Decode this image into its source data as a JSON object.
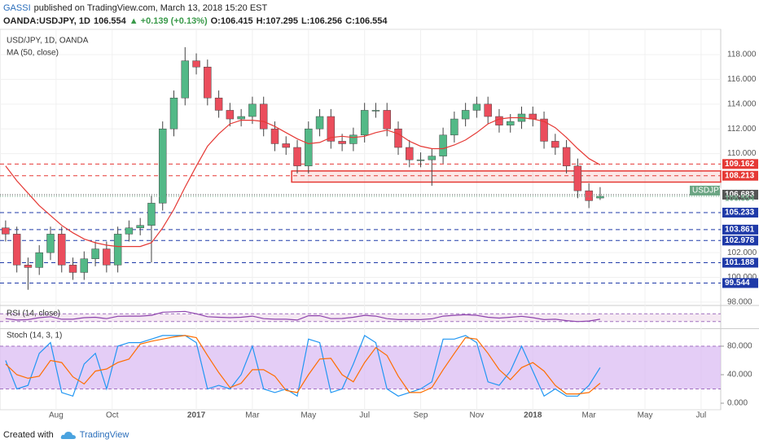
{
  "header": {
    "author": "GASSI",
    "published": "published on TradingView.com, March 13, 2018 15:20 EST",
    "symbol": "OANDA:USDJPY, 1D",
    "last": "106.554",
    "change": "▲ +0.139 (+0.13%)",
    "open": "O:106.415",
    "high": "H:107.295",
    "low": "L:106.256",
    "close": "C:106.554"
  },
  "footer": {
    "created": "Created with",
    "brand": "TradingView"
  },
  "chart_data": [
    {
      "type": "candlestick",
      "title": "USD/JPY, 1D, OANDA",
      "up_color": "#53b987",
      "down_color": "#eb4d5c",
      "x": [
        0.2,
        0.6,
        1.0,
        1.4,
        1.8,
        2.2,
        2.6,
        3.0,
        3.4,
        3.8,
        4.2,
        4.6,
        5.0,
        5.4,
        5.8,
        6.2,
        6.6,
        7.0,
        7.4,
        7.8,
        8.2,
        8.6,
        9.0,
        9.4,
        9.8,
        10.2,
        10.6,
        11.0,
        11.4,
        11.8,
        12.2,
        12.6,
        13.0,
        13.4,
        13.8,
        14.2,
        14.6,
        15.0,
        15.4,
        15.8,
        16.2,
        16.6,
        17.0,
        17.4,
        17.8,
        18.2,
        18.6,
        19.0,
        19.4,
        19.8,
        20.2,
        20.6,
        21.0,
        21.4
      ],
      "open": [
        104,
        103.5,
        101,
        100.8,
        102,
        103.5,
        101,
        100.4,
        101.5,
        102.3,
        101,
        103.5,
        104,
        104.2,
        106,
        112,
        114.5,
        117.5,
        117,
        114.5,
        113.5,
        112.8,
        113,
        114,
        112,
        110.8,
        110.5,
        109,
        112,
        113,
        111,
        110.8,
        111.5,
        113.5,
        113.5,
        112,
        110.5,
        109.5,
        109.5,
        109.8,
        111.5,
        112.8,
        113.5,
        114,
        113,
        112.3,
        112.6,
        113.2,
        112.8,
        111,
        110.5,
        109,
        107,
        106.415
      ],
      "high": [
        104.6,
        104.1,
        101.6,
        102.6,
        104.1,
        104.1,
        101.6,
        102.1,
        102.9,
        102.9,
        104.1,
        104.6,
        104.8,
        106.6,
        112.6,
        115.1,
        118.6,
        118.1,
        117.6,
        115.1,
        114.1,
        113.6,
        114.6,
        114.6,
        112.6,
        111.4,
        111.1,
        112.6,
        113.6,
        113.6,
        111.6,
        112.1,
        114.1,
        114.1,
        114.1,
        112.6,
        111.1,
        110.1,
        110.4,
        112.1,
        113.4,
        114.1,
        114.6,
        114.6,
        113.6,
        113.2,
        113.8,
        113.8,
        113.4,
        111.6,
        111.1,
        109.6,
        107.6,
        107.295
      ],
      "low": [
        102.9,
        100.4,
        99.0,
        100.2,
        101.4,
        100.4,
        99.8,
        99.8,
        100.9,
        100.4,
        100.4,
        102.9,
        103.4,
        101.2,
        105.4,
        111.4,
        113.9,
        116.4,
        113.9,
        112.9,
        112.2,
        112.2,
        112.4,
        111.4,
        110.2,
        109.9,
        108.4,
        108.4,
        111.4,
        110.4,
        110.2,
        110.2,
        110.9,
        112.9,
        111.4,
        109.9,
        108.9,
        108.9,
        107.4,
        109.2,
        110.9,
        112.2,
        112.9,
        112.4,
        111.7,
        111.7,
        112.0,
        112.2,
        110.4,
        109.9,
        108.4,
        106.4,
        105.6,
        106.256
      ],
      "close": [
        103.5,
        101,
        100.8,
        102,
        103.5,
        101,
        100.4,
        101.5,
        102.3,
        101,
        103.5,
        104,
        104.2,
        106,
        112,
        114.5,
        117.5,
        117,
        114.5,
        113.5,
        112.8,
        113,
        114,
        112,
        110.8,
        110.5,
        109,
        112,
        113,
        111,
        110.8,
        111.5,
        113.5,
        113.5,
        112,
        110.5,
        109.5,
        109.5,
        109.8,
        111.5,
        112.8,
        113.5,
        114,
        113,
        112.3,
        112.6,
        113.2,
        112.8,
        111,
        110.5,
        109,
        107,
        106.2,
        106.554
      ],
      "series": [
        {
          "name": "MA (50, close)",
          "color": "#e53935",
          "values": [
            109,
            107.8,
            106.8,
            105.8,
            105,
            104.2,
            103.6,
            103.1,
            102.8,
            102.6,
            102.5,
            102.5,
            102.5,
            102.8,
            104,
            105.5,
            107.3,
            109,
            110.6,
            111.6,
            112.4,
            112.7,
            112.7,
            112.6,
            112.2,
            111.7,
            111.2,
            110.8,
            110.9,
            111.3,
            111.4,
            111.3,
            111.4,
            111.7,
            111.9,
            111.6,
            111,
            110.6,
            110.4,
            110.4,
            110.7,
            111.1,
            111.7,
            112.4,
            112.8,
            112.9,
            112.9,
            112.8,
            112.6,
            112.1,
            111.3,
            110.4,
            109.6,
            109.1
          ]
        }
      ],
      "xlim": [
        0,
        25.7
      ],
      "xticks": [
        {
          "value": 2,
          "label": "Aug"
        },
        {
          "value": 4,
          "label": "Oct"
        },
        {
          "value": 7,
          "label": "2017"
        },
        {
          "value": 9,
          "label": "Mar"
        },
        {
          "value": 11,
          "label": "May"
        },
        {
          "value": 13,
          "label": "Jul"
        },
        {
          "value": 15,
          "label": "Sep"
        },
        {
          "value": 17,
          "label": "Nov"
        },
        {
          "value": 19,
          "label": "2018"
        },
        {
          "value": 21,
          "label": "Mar"
        },
        {
          "value": 23,
          "label": "May"
        },
        {
          "value": 25,
          "label": "Jul"
        }
      ],
      "ylim": [
        97.93,
        119.78
      ],
      "yticks": [
        {
          "value": 118,
          "label": "118.000"
        },
        {
          "value": 116,
          "label": "116.000"
        },
        {
          "value": 114,
          "label": "114.000"
        },
        {
          "value": 112,
          "label": "112.000"
        },
        {
          "value": 110,
          "label": "110.000"
        },
        {
          "value": 102,
          "label": "102.000"
        },
        {
          "value": 100,
          "label": "100.000"
        },
        {
          "value": 98,
          "label": "98.000"
        }
      ],
      "zone": {
        "x0": 10.4,
        "range": [
          107.7,
          108.6
        ],
        "color": "#e53935"
      },
      "levels": [
        {
          "value": 109.162,
          "label": "109.162",
          "color": "#e53935"
        },
        {
          "value": 108.213,
          "label": "108.213",
          "color": "#e53935"
        },
        {
          "value": 105.233,
          "label": "105.233",
          "color": "#1f3aa8"
        },
        {
          "value": 103.861,
          "label": "103.861",
          "color": "#1f3aa8"
        },
        {
          "value": 102.978,
          "label": "102.978",
          "color": "#1f3aa8"
        },
        {
          "value": 101.188,
          "label": "101.188",
          "color": "#1f3aa8"
        },
        {
          "value": 99.544,
          "label": "99.544",
          "color": "#1f3aa8"
        }
      ],
      "reference": {
        "value": 106.683,
        "label": "106.683",
        "color": "#555555"
      },
      "last": {
        "value": 106.554,
        "label": "106.554",
        "tag": "USDJPY",
        "color": "#6ba583"
      }
    },
    {
      "type": "line",
      "title": "RSI (14, close)",
      "band": [
        30,
        70
      ],
      "ylim": [
        0,
        100
      ],
      "series": [
        {
          "color": "#8e44ad",
          "values": [
            45,
            38,
            40,
            50,
            55,
            42,
            42,
            50,
            52,
            45,
            57,
            58,
            58,
            62,
            78,
            80,
            82,
            70,
            55,
            52,
            50,
            52,
            58,
            45,
            42,
            42,
            38,
            60,
            60,
            45,
            46,
            52,
            62,
            58,
            45,
            40,
            40,
            40,
            44,
            58,
            62,
            65,
            62,
            52,
            48,
            52,
            57,
            50,
            40,
            42,
            35,
            30,
            33,
            42
          ]
        }
      ]
    },
    {
      "type": "line",
      "title": "Stoch (14, 3, 1)",
      "band": [
        20,
        80
      ],
      "ylim": [
        -5.71,
        102.86
      ],
      "yticks": [
        {
          "value": 80,
          "label": "80.000"
        },
        {
          "value": 40,
          "label": "40.000"
        },
        {
          "value": 0,
          "label": "0.000"
        }
      ],
      "series": [
        {
          "color": "#2196f3",
          "values": [
            60,
            20,
            25,
            70,
            85,
            15,
            10,
            55,
            70,
            20,
            80,
            85,
            85,
            90,
            95,
            95,
            95,
            85,
            20,
            25,
            20,
            40,
            80,
            20,
            15,
            20,
            10,
            90,
            85,
            15,
            20,
            55,
            95,
            85,
            20,
            10,
            15,
            20,
            30,
            90,
            90,
            95,
            85,
            30,
            25,
            45,
            80,
            45,
            10,
            20,
            10,
            10,
            25,
            50
          ]
        },
        {
          "color": "#ff6d00",
          "values": [
            55,
            40,
            35,
            38,
            60,
            57,
            37,
            27,
            45,
            48,
            57,
            62,
            83,
            87,
            90,
            93,
            95,
            92,
            67,
            43,
            22,
            28,
            47,
            47,
            38,
            18,
            15,
            40,
            62,
            63,
            40,
            30,
            57,
            78,
            67,
            38,
            15,
            15,
            22,
            47,
            70,
            92,
            90,
            70,
            47,
            33,
            50,
            57,
            45,
            25,
            13,
            13,
            15,
            28
          ]
        }
      ]
    }
  ]
}
